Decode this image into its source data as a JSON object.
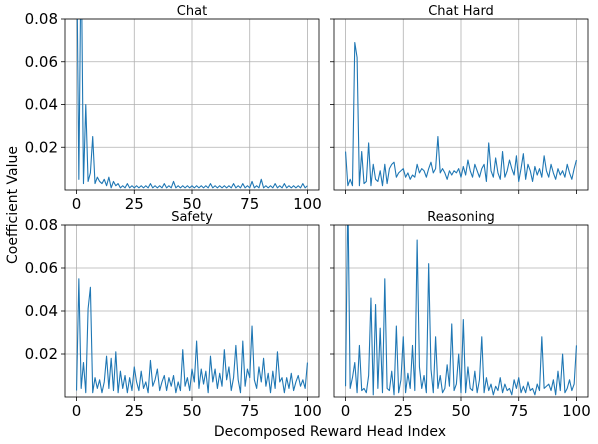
{
  "chart_data": [
    {
      "type": "line",
      "title": "Chat",
      "xlim": [
        -5,
        105
      ],
      "ylim": [
        0,
        0.08
      ],
      "yticks": [
        0.02,
        0.04,
        0.06,
        0.08
      ],
      "ytick_labels": [
        "0.02",
        "0.04",
        "0.06",
        "0.08"
      ],
      "xticks": [
        0,
        25,
        50,
        75,
        100
      ],
      "xtick_labels": [
        "0",
        "25",
        "50",
        "75",
        "100"
      ],
      "grid": true,
      "series_color": "#1f77b4",
      "x": [
        0,
        1,
        2,
        3,
        4,
        5,
        6,
        7,
        8,
        9,
        10,
        11,
        12,
        13,
        14,
        15,
        16,
        17,
        18,
        19,
        20,
        21,
        22,
        23,
        24,
        25,
        26,
        27,
        28,
        29,
        30,
        31,
        32,
        33,
        34,
        35,
        36,
        37,
        38,
        39,
        40,
        41,
        42,
        43,
        44,
        45,
        46,
        47,
        48,
        49,
        50,
        51,
        52,
        53,
        54,
        55,
        56,
        57,
        58,
        59,
        60,
        61,
        62,
        63,
        64,
        65,
        66,
        67,
        68,
        69,
        70,
        71,
        72,
        73,
        74,
        75,
        76,
        77,
        78,
        79,
        80,
        81,
        82,
        83,
        84,
        85,
        86,
        87,
        88,
        89,
        90,
        91,
        92,
        93,
        94,
        95,
        96,
        97,
        98,
        99,
        100
      ],
      "y": [
        0.12,
        0.005,
        0.115,
        0.003,
        0.04,
        0.004,
        0.008,
        0.025,
        0.003,
        0.006,
        0.004,
        0.003,
        0.005,
        0.002,
        0.006,
        0.001,
        0.004,
        0.002,
        0.003,
        0.001,
        0.002,
        0.001,
        0.003,
        0.001,
        0.002,
        0.001,
        0.002,
        0.001,
        0.002,
        0.001,
        0.002,
        0.001,
        0.003,
        0.001,
        0.002,
        0.001,
        0.002,
        0.001,
        0.003,
        0.001,
        0.002,
        0.001,
        0.004,
        0.001,
        0.002,
        0.001,
        0.002,
        0.001,
        0.002,
        0.001,
        0.002,
        0.001,
        0.002,
        0.001,
        0.002,
        0.001,
        0.002,
        0.001,
        0.003,
        0.001,
        0.002,
        0.001,
        0.002,
        0.001,
        0.002,
        0.001,
        0.002,
        0.001,
        0.003,
        0.001,
        0.002,
        0.001,
        0.003,
        0.001,
        0.002,
        0.001,
        0.004,
        0.001,
        0.002,
        0.001,
        0.005,
        0.001,
        0.002,
        0.001,
        0.002,
        0.001,
        0.003,
        0.001,
        0.002,
        0.001,
        0.003,
        0.001,
        0.002,
        0.001,
        0.002,
        0.001,
        0.002,
        0.001,
        0.003,
        0.001,
        0.002
      ]
    },
    {
      "type": "line",
      "title": "Chat Hard",
      "xlim": [
        -5,
        105
      ],
      "ylim": [
        0,
        0.08
      ],
      "yticks": [
        0.02,
        0.04,
        0.06,
        0.08
      ],
      "ytick_labels": [
        "",
        "",
        "",
        ""
      ],
      "xticks": [
        0,
        25,
        50,
        75,
        100
      ],
      "xtick_labels": [
        "",
        "",
        "",
        "",
        ""
      ],
      "grid": true,
      "series_color": "#1f77b4",
      "x": [
        0,
        1,
        2,
        3,
        4,
        5,
        6,
        7,
        8,
        9,
        10,
        11,
        12,
        13,
        14,
        15,
        16,
        17,
        18,
        19,
        20,
        21,
        22,
        23,
        24,
        25,
        26,
        27,
        28,
        29,
        30,
        31,
        32,
        33,
        34,
        35,
        36,
        37,
        38,
        39,
        40,
        41,
        42,
        43,
        44,
        45,
        46,
        47,
        48,
        49,
        50,
        51,
        52,
        53,
        54,
        55,
        56,
        57,
        58,
        59,
        60,
        61,
        62,
        63,
        64,
        65,
        66,
        67,
        68,
        69,
        70,
        71,
        72,
        73,
        74,
        75,
        76,
        77,
        78,
        79,
        80,
        81,
        82,
        83,
        84,
        85,
        86,
        87,
        88,
        89,
        90,
        91,
        92,
        93,
        94,
        95,
        96,
        97,
        98,
        99,
        100
      ],
      "y": [
        0.018,
        0.002,
        0.005,
        0.002,
        0.069,
        0.062,
        0.002,
        0.018,
        0.003,
        0.004,
        0.022,
        0.002,
        0.012,
        0.005,
        0.004,
        0.009,
        0.002,
        0.012,
        0.003,
        0.01,
        0.012,
        0.013,
        0.006,
        0.008,
        0.009,
        0.01,
        0.006,
        0.008,
        0.005,
        0.007,
        0.006,
        0.012,
        0.008,
        0.01,
        0.009,
        0.006,
        0.01,
        0.013,
        0.008,
        0.01,
        0.025,
        0.008,
        0.01,
        0.008,
        0.005,
        0.009,
        0.007,
        0.009,
        0.008,
        0.01,
        0.006,
        0.011,
        0.007,
        0.014,
        0.009,
        0.006,
        0.012,
        0.009,
        0.006,
        0.01,
        0.012,
        0.004,
        0.022,
        0.009,
        0.006,
        0.015,
        0.008,
        0.005,
        0.018,
        0.006,
        0.009,
        0.014,
        0.01,
        0.007,
        0.016,
        0.004,
        0.01,
        0.017,
        0.005,
        0.012,
        0.009,
        0.004,
        0.011,
        0.007,
        0.01,
        0.006,
        0.016,
        0.009,
        0.006,
        0.012,
        0.008,
        0.005,
        0.01,
        0.007,
        0.009,
        0.006,
        0.012,
        0.008,
        0.005,
        0.01,
        0.014
      ]
    },
    {
      "type": "line",
      "title": "Safety",
      "xlim": [
        -5,
        105
      ],
      "ylim": [
        0,
        0.08
      ],
      "yticks": [
        0.02,
        0.04,
        0.06,
        0.08
      ],
      "ytick_labels": [
        "0.02",
        "0.04",
        "0.06",
        "0.08"
      ],
      "xticks": [
        0,
        25,
        50,
        75,
        100
      ],
      "xtick_labels": [
        "0",
        "25",
        "50",
        "75",
        "100"
      ],
      "grid": true,
      "series_color": "#1f77b4",
      "x": [
        0,
        1,
        2,
        3,
        4,
        5,
        6,
        7,
        8,
        9,
        10,
        11,
        12,
        13,
        14,
        15,
        16,
        17,
        18,
        19,
        20,
        21,
        22,
        23,
        24,
        25,
        26,
        27,
        28,
        29,
        30,
        31,
        32,
        33,
        34,
        35,
        36,
        37,
        38,
        39,
        40,
        41,
        42,
        43,
        44,
        45,
        46,
        47,
        48,
        49,
        50,
        51,
        52,
        53,
        54,
        55,
        56,
        57,
        58,
        59,
        60,
        61,
        62,
        63,
        64,
        65,
        66,
        67,
        68,
        69,
        70,
        71,
        72,
        73,
        74,
        75,
        76,
        77,
        78,
        79,
        80,
        81,
        82,
        83,
        84,
        85,
        86,
        87,
        88,
        89,
        90,
        91,
        92,
        93,
        94,
        95,
        96,
        97,
        98,
        99,
        100
      ],
      "y": [
        0.003,
        0.055,
        0.004,
        0.016,
        0.002,
        0.041,
        0.051,
        0.002,
        0.009,
        0.004,
        0.008,
        0.002,
        0.007,
        0.019,
        0.004,
        0.018,
        0.003,
        0.021,
        0.002,
        0.012,
        0.004,
        0.01,
        0.002,
        0.009,
        0.003,
        0.014,
        0.007,
        0.003,
        0.012,
        0.004,
        0.007,
        0.002,
        0.017,
        0.005,
        0.008,
        0.013,
        0.003,
        0.007,
        0.01,
        0.003,
        0.009,
        0.005,
        0.01,
        0.002,
        0.007,
        0.003,
        0.022,
        0.005,
        0.009,
        0.003,
        0.013,
        0.007,
        0.026,
        0.004,
        0.013,
        0.006,
        0.012,
        0.002,
        0.019,
        0.007,
        0.013,
        0.004,
        0.011,
        0.005,
        0.022,
        0.008,
        0.014,
        0.003,
        0.009,
        0.024,
        0.008,
        0.002,
        0.026,
        0.005,
        0.013,
        0.009,
        0.033,
        0.008,
        0.004,
        0.014,
        0.007,
        0.018,
        0.005,
        0.011,
        0.002,
        0.012,
        0.004,
        0.021,
        0.007,
        0.009,
        0.002,
        0.009,
        0.004,
        0.011,
        0.003,
        0.007,
        0.01,
        0.005,
        0.008,
        0.004,
        0.016
      ]
    },
    {
      "type": "line",
      "title": "Reasoning",
      "xlim": [
        -5,
        105
      ],
      "ylim": [
        0,
        0.08
      ],
      "yticks": [
        0.02,
        0.04,
        0.06,
        0.08
      ],
      "ytick_labels": [
        "",
        "",
        "",
        ""
      ],
      "xticks": [
        0,
        25,
        50,
        75,
        100
      ],
      "xtick_labels": [
        "0",
        "25",
        "50",
        "75",
        "100"
      ],
      "grid": true,
      "series_color": "#1f77b4",
      "x": [
        0,
        1,
        2,
        3,
        4,
        5,
        6,
        7,
        8,
        9,
        10,
        11,
        12,
        13,
        14,
        15,
        16,
        17,
        18,
        19,
        20,
        21,
        22,
        23,
        24,
        25,
        26,
        27,
        28,
        29,
        30,
        31,
        32,
        33,
        34,
        35,
        36,
        37,
        38,
        39,
        40,
        41,
        42,
        43,
        44,
        45,
        46,
        47,
        48,
        49,
        50,
        51,
        52,
        53,
        54,
        55,
        56,
        57,
        58,
        59,
        60,
        61,
        62,
        63,
        64,
        65,
        66,
        67,
        68,
        69,
        70,
        71,
        72,
        73,
        74,
        75,
        76,
        77,
        78,
        79,
        80,
        81,
        82,
        83,
        84,
        85,
        86,
        87,
        88,
        89,
        90,
        91,
        92,
        93,
        94,
        95,
        96,
        97,
        98,
        99,
        100
      ],
      "y": [
        0.005,
        0.095,
        0.004,
        0.009,
        0.016,
        0.002,
        0.024,
        0.003,
        0.004,
        0.002,
        0.01,
        0.046,
        0.001,
        0.043,
        0.004,
        0.032,
        0.002,
        0.055,
        0.004,
        0.003,
        0.012,
        0.001,
        0.033,
        0.002,
        0.008,
        0.028,
        0.002,
        0.011,
        0.004,
        0.024,
        0.003,
        0.073,
        0.014,
        0.004,
        0.01,
        0.002,
        0.062,
        0.013,
        0.002,
        0.028,
        0.004,
        0.01,
        0.002,
        0.004,
        0.015,
        0.005,
        0.034,
        0.003,
        0.006,
        0.02,
        0.002,
        0.036,
        0.002,
        0.014,
        0.004,
        0.003,
        0.012,
        0.002,
        0.008,
        0.028,
        0.002,
        0.009,
        0.003,
        0.006,
        0.001,
        0.005,
        0.003,
        0.009,
        0.002,
        0.006,
        0.003,
        0.004,
        0.001,
        0.008,
        0.004,
        0.009,
        0.002,
        0.005,
        0.002,
        0.007,
        0.003,
        0.004,
        0.001,
        0.006,
        0.003,
        0.028,
        0.004,
        0.005,
        0.006,
        0.003,
        0.008,
        0.001,
        0.012,
        0.003,
        0.02,
        0.002,
        0.004,
        0.008,
        0.003,
        0.006,
        0.024
      ]
    }
  ],
  "figure": {
    "xlabel": "Decomposed Reward Head Index",
    "ylabel": "Coefficient Value"
  },
  "colors": {
    "line": "#1f77b4",
    "grid": "#b0b0b0",
    "axis": "#000000",
    "background": "#ffffff"
  }
}
